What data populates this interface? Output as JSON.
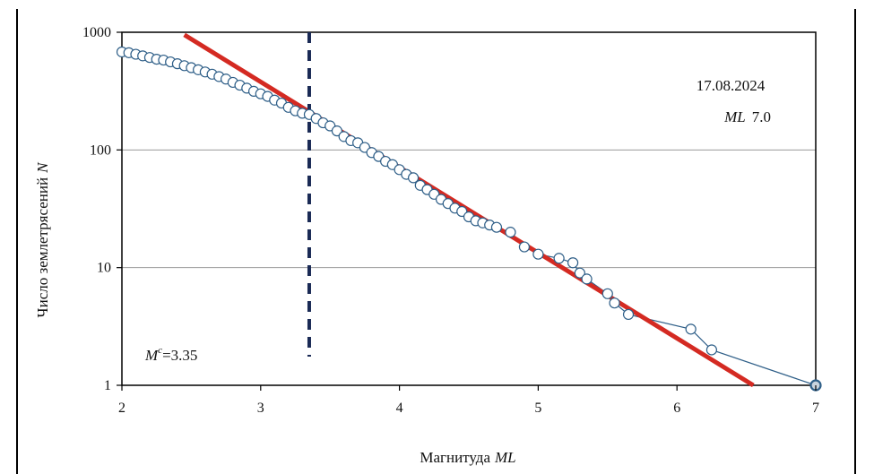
{
  "chart_data": {
    "type": "scatter",
    "xlabel": "Магнитуда",
    "xlabel_italic": "ML",
    "ylabel": "Число землетрясений",
    "ylabel_italic": "N",
    "xlim": [
      2,
      7
    ],
    "ylim": [
      1,
      1000
    ],
    "y_scale": "log",
    "x_ticks": [
      "2",
      "3",
      "4",
      "5",
      "6",
      "7"
    ],
    "y_ticks": [
      "1",
      "10",
      "100",
      "1000"
    ],
    "grid": "horizontal",
    "annotations": {
      "date": "17.08.2024",
      "event_prefix": "ML",
      "event_value": "7.0",
      "mc_symbol": "M",
      "mc_superscript": "c",
      "mc_value": "=3.35"
    },
    "mc": 3.35,
    "fit_line": {
      "x": [
        2.45,
        6.55
      ],
      "y": [
        950,
        1
      ],
      "color": "#d42a22"
    },
    "series": [
      {
        "x": [
          2.0,
          2.05,
          2.1,
          2.15,
          2.2,
          2.25,
          2.3,
          2.35,
          2.4,
          2.45,
          2.5,
          2.55,
          2.6,
          2.65,
          2.7,
          2.75,
          2.8,
          2.85,
          2.9,
          2.95,
          3.0,
          3.05,
          3.1,
          3.15,
          3.2,
          3.25,
          3.3,
          3.35,
          3.4,
          3.45,
          3.5,
          3.55,
          3.6,
          3.65,
          3.7,
          3.75,
          3.8,
          3.85,
          3.9,
          3.95,
          4.0,
          4.05,
          4.1,
          4.15,
          4.2,
          4.25,
          4.3,
          4.35,
          4.4,
          4.45,
          4.5,
          4.55,
          4.6,
          4.65,
          4.7,
          4.8,
          4.9,
          5.0,
          5.15,
          5.25,
          5.3,
          5.35,
          5.5,
          5.55,
          5.65,
          6.1,
          6.25,
          7.0
        ],
        "y": [
          680,
          670,
          650,
          630,
          610,
          590,
          580,
          560,
          540,
          520,
          500,
          480,
          460,
          440,
          420,
          400,
          375,
          355,
          335,
          315,
          300,
          285,
          265,
          250,
          230,
          215,
          205,
          200,
          185,
          170,
          160,
          145,
          130,
          120,
          115,
          105,
          95,
          88,
          80,
          75,
          68,
          62,
          58,
          50,
          46,
          42,
          38,
          35,
          32,
          30,
          27,
          25,
          24,
          23,
          22,
          20,
          15,
          13,
          12,
          11,
          9,
          8,
          6,
          5,
          4,
          3,
          2,
          1
        ],
        "marker": "open-circle",
        "color": "#2f5f88"
      }
    ]
  }
}
